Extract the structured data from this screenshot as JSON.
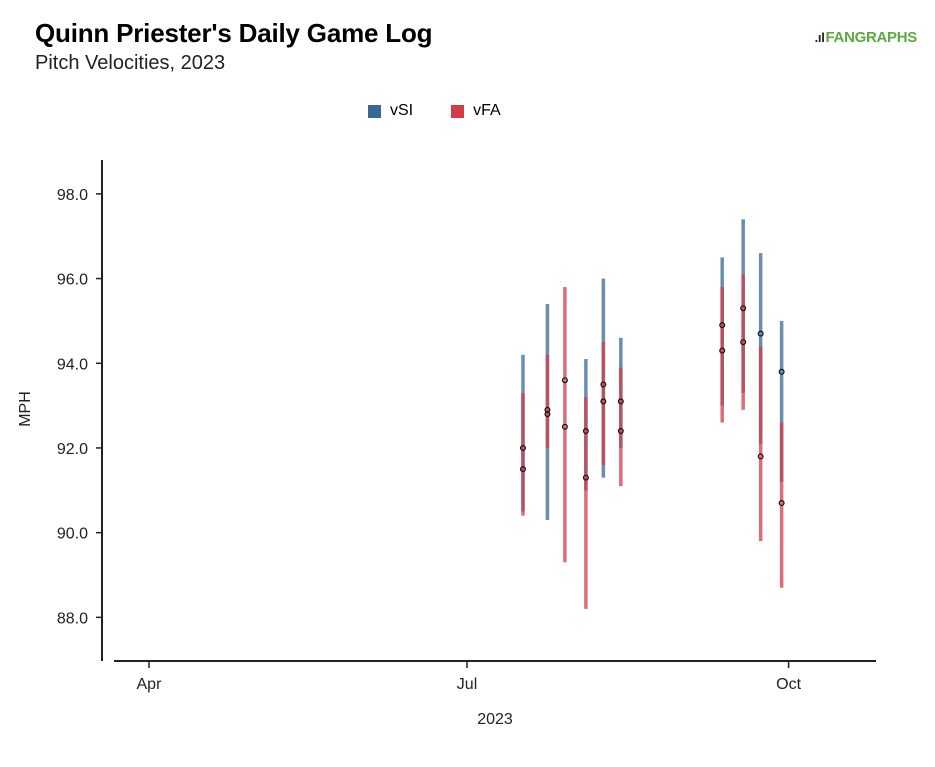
{
  "header": {
    "title": "Quinn Priester's Daily Game Log",
    "subtitle": "Pitch Velocities, 2023",
    "brand": "FANGRAPHS",
    "brand_mark": ".ıl"
  },
  "colors": {
    "vSI": "#3a6896",
    "vFA": "#d23c48",
    "overlap": "#93334a",
    "brand": "#5aab3c"
  },
  "chart_data": {
    "type": "range-bar",
    "title": "Quinn Priester's Daily Game Log",
    "subtitle": "Pitch Velocities, 2023",
    "xlabel": "2023",
    "ylabel": "MPH",
    "ylim": [
      87.3,
      98.8
    ],
    "yticks": [
      "88.0",
      "90.0",
      "92.0",
      "94.0",
      "96.0",
      "98.0"
    ],
    "xticks": [
      {
        "label": "Apr",
        "date": "2023-04-01"
      },
      {
        "label": "Jul",
        "date": "2023-07-01"
      },
      {
        "label": "Oct",
        "date": "2023-10-01"
      }
    ],
    "xlim": [
      "2023-03-22",
      "2023-10-26"
    ],
    "legend": [
      "vSI",
      "vFA"
    ],
    "legend_position": "top",
    "grid": false,
    "series": [
      {
        "name": "vSI",
        "points": [
          {
            "date": "2023-07-17",
            "min": 90.5,
            "max": 94.2,
            "avg": 91.5
          },
          {
            "date": "2023-07-24",
            "min": 90.3,
            "max": 95.4,
            "avg": 92.9
          },
          {
            "date": "2023-08-04",
            "min": 91.0,
            "max": 94.1,
            "avg": 92.4
          },
          {
            "date": "2023-08-09",
            "min": 91.3,
            "max": 96.0,
            "avg": 93.5
          },
          {
            "date": "2023-08-14",
            "min": 92.0,
            "max": 94.6,
            "avg": 93.1
          },
          {
            "date": "2023-09-12",
            "min": 93.0,
            "max": 96.5,
            "avg": 94.9
          },
          {
            "date": "2023-09-18",
            "min": 93.3,
            "max": 97.4,
            "avg": 95.3
          },
          {
            "date": "2023-09-23",
            "min": 92.1,
            "max": 96.6,
            "avg": 94.7
          },
          {
            "date": "2023-09-29",
            "min": 91.2,
            "max": 95.0,
            "avg": 93.8
          }
        ]
      },
      {
        "name": "vFA",
        "points": [
          {
            "date": "2023-07-17",
            "min": 90.4,
            "max": 93.3,
            "avg": 92.0
          },
          {
            "date": "2023-07-24",
            "min": 92.0,
            "max": 94.2,
            "avg": 92.8
          },
          {
            "date": "2023-07-29",
            "min": 89.3,
            "max": 95.8,
            "avg": 93.6
          },
          {
            "date": "2023-08-04",
            "min": 88.2,
            "max": 93.2,
            "avg": 91.3
          },
          {
            "date": "2023-08-09",
            "min": 91.6,
            "max": 94.5,
            "avg": 93.1
          },
          {
            "date": "2023-08-14",
            "min": 91.1,
            "max": 93.9,
            "avg": 92.4
          },
          {
            "date": "2023-09-12",
            "min": 92.6,
            "max": 95.8,
            "avg": 94.3
          },
          {
            "date": "2023-09-18",
            "min": 92.9,
            "max": 96.1,
            "avg": 94.5
          },
          {
            "date": "2023-09-23",
            "min": 89.8,
            "max": 94.4,
            "avg": 91.8
          },
          {
            "date": "2023-09-29",
            "min": 88.7,
            "max": 92.6,
            "avg": 90.7
          }
        ]
      }
    ],
    "extra_points": [
      {
        "date": "2023-07-29",
        "avg": 92.5
      }
    ]
  }
}
